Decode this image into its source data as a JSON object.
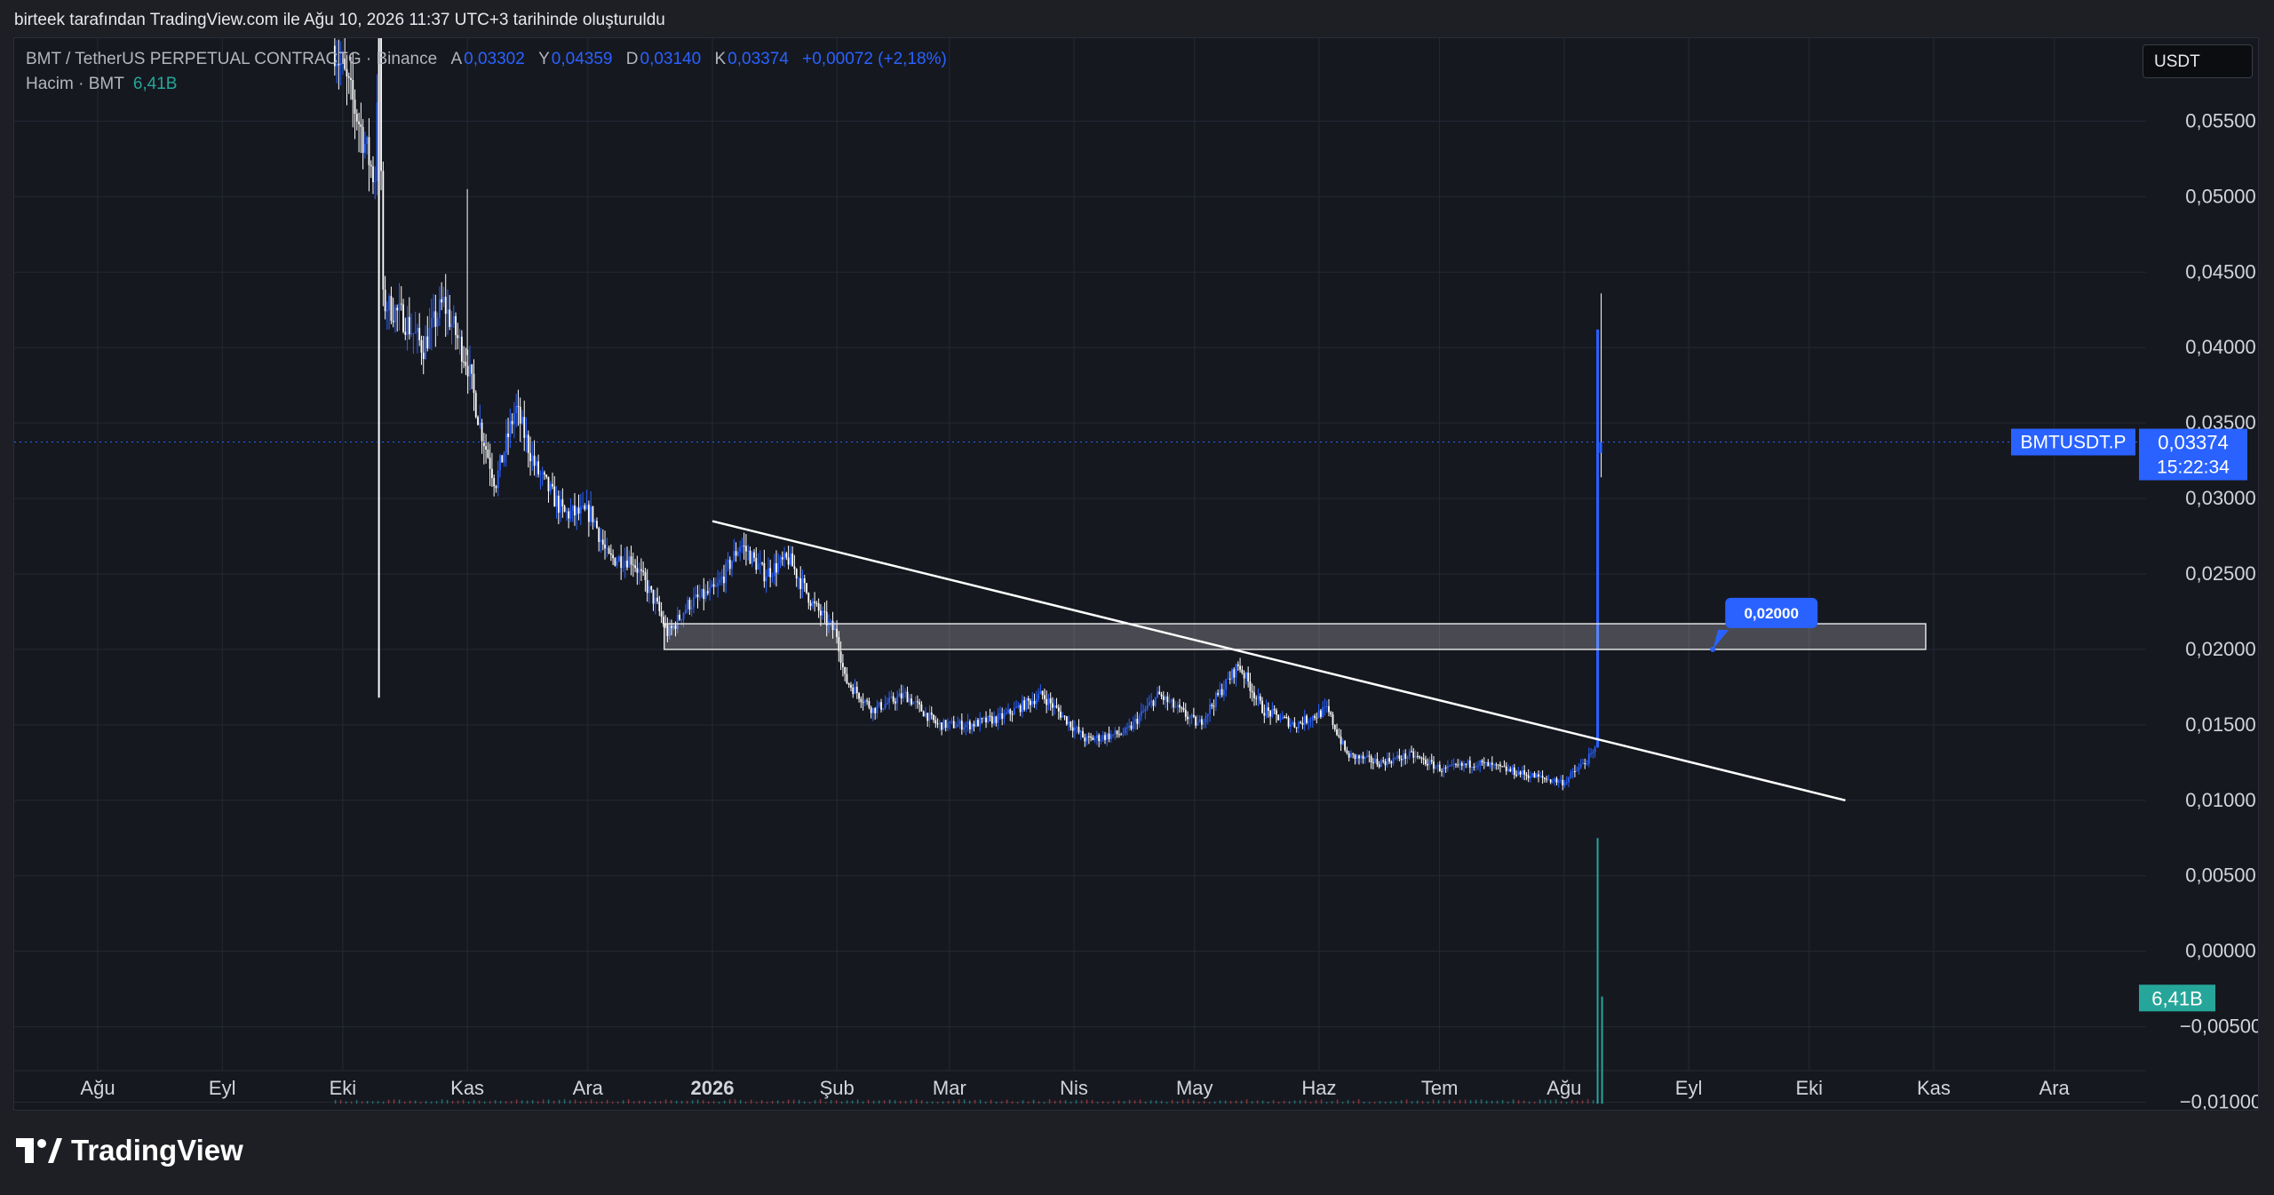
{
  "page": {
    "top_caption": "birteek tarafından TradingView.com ile Ağu 10, 2026 11:37 UTC+3 tarihinde oluşturuldu",
    "brand": "TradingView"
  },
  "header": {
    "symbol": "BMT / TetherUS PERPETUAL CONTRACT",
    "symbol_suffix": "G · Binance",
    "open_label": "A",
    "open": "0,03302",
    "high_label": "Y",
    "high": "0,04359",
    "low_label": "D",
    "low": "0,03140",
    "close_label": "K",
    "close": "0,03374",
    "change": "+0,00072 (+2,18%)",
    "volume_label": "Hacim · BMT",
    "volume_value": "6,41B"
  },
  "currency_button": "USDT",
  "colors": {
    "background": "#161820",
    "grid": "#252932",
    "candle_up": "#2962ff",
    "candle_down": "#ffffff",
    "accent": "#2962ff",
    "volume": "#26a69a"
  },
  "chart_data": {
    "type": "candlestick",
    "series_name": "BMTUSDT.P",
    "x_ticks": [
      "Ağu",
      "Eyl",
      "Eki",
      "Kas",
      "Ara",
      "2026",
      "Şub",
      "Mar",
      "Nis",
      "May",
      "Haz",
      "Tem",
      "Ağu",
      "Eyl",
      "Eki",
      "Kas",
      "Ara"
    ],
    "y_ticks": [
      "0,05500",
      "0,05000",
      "0,04500",
      "0,04000",
      "0,03500",
      "0,03000",
      "0,02500",
      "0,02000",
      "0,01500",
      "0,01000",
      "0,00500",
      "0,00000",
      "−0,00500",
      "−0,01000"
    ],
    "ylim": [
      -0.0105,
      0.0605
    ],
    "price_path": [
      [
        "2025-09-29",
        0.06
      ],
      [
        "2025-10-05",
        0.055
      ],
      [
        "2025-10-09",
        0.051
      ],
      [
        "2025-10-10",
        0.062
      ],
      [
        "2025-10-11",
        0.043
      ],
      [
        "2025-10-16",
        0.042
      ],
      [
        "2025-10-21",
        0.04
      ],
      [
        "2025-10-26",
        0.043
      ],
      [
        "2025-11-01",
        0.039
      ],
      [
        "2025-11-04",
        0.035
      ],
      [
        "2025-11-08",
        0.031
      ],
      [
        "2025-11-13",
        0.036
      ],
      [
        "2025-11-18",
        0.032
      ],
      [
        "2025-11-25",
        0.029
      ],
      [
        "2025-12-02",
        0.029
      ],
      [
        "2025-12-06",
        0.026
      ],
      [
        "2025-12-12",
        0.026
      ],
      [
        "2025-12-18",
        0.023
      ],
      [
        "2025-12-21",
        0.021
      ],
      [
        "2025-12-26",
        0.023
      ],
      [
        "2026-01-02",
        0.024
      ],
      [
        "2026-01-08",
        0.027
      ],
      [
        "2026-01-14",
        0.025
      ],
      [
        "2026-01-20",
        0.026
      ],
      [
        "2026-01-26",
        0.023
      ],
      [
        "2026-02-01",
        0.021
      ],
      [
        "2026-02-03",
        0.018
      ],
      [
        "2026-02-10",
        0.016
      ],
      [
        "2026-02-18",
        0.017
      ],
      [
        "2026-02-26",
        0.015
      ],
      [
        "2026-03-06",
        0.015
      ],
      [
        "2026-03-14",
        0.0155
      ],
      [
        "2026-03-24",
        0.017
      ],
      [
        "2026-04-04",
        0.014
      ],
      [
        "2026-04-14",
        0.0145
      ],
      [
        "2026-04-22",
        0.017
      ],
      [
        "2026-05-02",
        0.015
      ],
      [
        "2026-05-12",
        0.019
      ],
      [
        "2026-05-18",
        0.016
      ],
      [
        "2026-05-26",
        0.015
      ],
      [
        "2026-06-03",
        0.016
      ],
      [
        "2026-06-08",
        0.013
      ],
      [
        "2026-06-16",
        0.0125
      ],
      [
        "2026-06-24",
        0.013
      ],
      [
        "2026-07-02",
        0.012
      ],
      [
        "2026-07-10",
        0.0125
      ],
      [
        "2026-07-18",
        0.012
      ],
      [
        "2026-07-26",
        0.0115
      ],
      [
        "2026-08-01",
        0.0112
      ],
      [
        "2026-08-08",
        0.013
      ],
      [
        "2026-08-09",
        0.0135
      ],
      [
        "2026-08-10",
        0.0337
      ]
    ],
    "last_candle": {
      "date": "2026-08-10",
      "open": 0.03302,
      "high": 0.04359,
      "low": 0.0314,
      "close": 0.03374
    },
    "spike_candle": {
      "date": "2025-10-10",
      "high": 0.062,
      "low": 0.0168
    },
    "trendline": {
      "from": [
        "2026-01-01",
        0.0285
      ],
      "to": [
        "2026-10-10",
        0.01
      ]
    },
    "zone": {
      "from": "2025-12-20",
      "to": "2026-10-30",
      "low": 0.02,
      "high": 0.0217
    },
    "zone_label": "0,02000",
    "last_price_label": "0,03374",
    "countdown": "15:22:34",
    "volume_badge": "6,41B",
    "volume_spike": {
      "date": "2026-08-10",
      "value": 6.41
    }
  }
}
